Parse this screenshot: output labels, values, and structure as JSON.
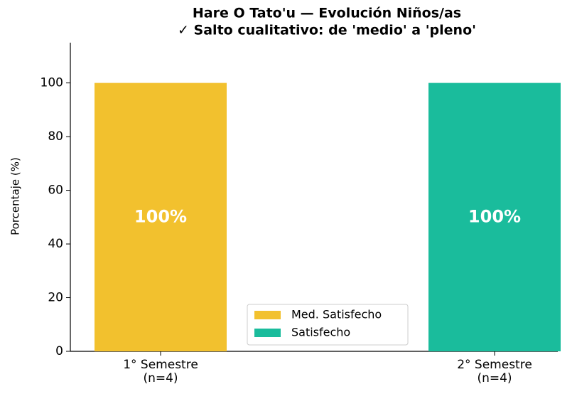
{
  "chart_data": {
    "type": "bar",
    "stacked": true,
    "title": "Hare O Tato'u — Evolución Niños/as",
    "subtitle": "✓ Salto cualitativo: de 'medio' a 'pleno'",
    "y_label": "Porcentaje (%)",
    "categories": [
      "1° Semestre\n(n=4)",
      "2° Semestre\n(n=4)"
    ],
    "series": [
      {
        "name": "Med. Satisfecho",
        "color": "#f2c12e",
        "values": [
          100,
          0
        ],
        "value_labels": [
          "100%",
          null
        ]
      },
      {
        "name": "Satisfecho",
        "color": "#1abc9c",
        "values": [
          0,
          100
        ],
        "value_labels": [
          null,
          "100%"
        ]
      }
    ],
    "ylim": [
      0,
      115
    ],
    "yticks": [
      0,
      20,
      40,
      60,
      80,
      100
    ],
    "legend": "lower center"
  }
}
